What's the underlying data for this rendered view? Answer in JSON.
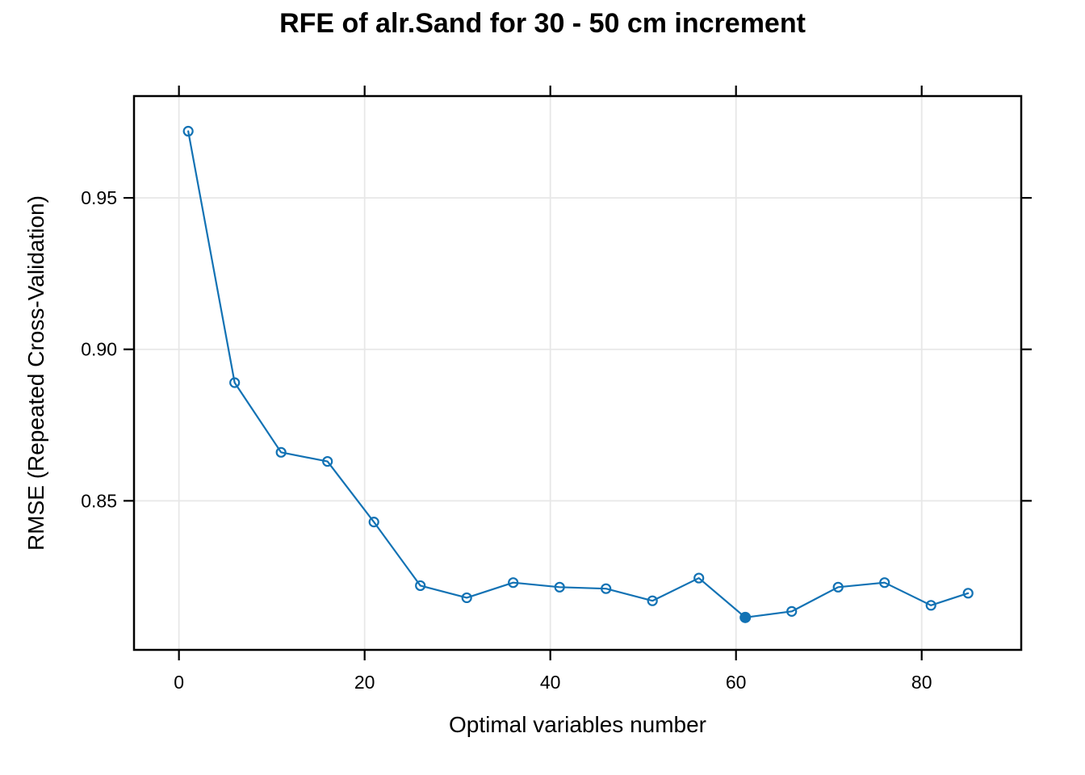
{
  "chart_data": {
    "type": "line",
    "title": "RFE of alr.Sand for 30 - 50 cm increment",
    "xlabel": "Optimal variables number",
    "ylabel": "RMSE (Repeated Cross-Validation)",
    "x": [
      1,
      6,
      11,
      16,
      21,
      26,
      31,
      36,
      41,
      46,
      51,
      56,
      61,
      66,
      71,
      76,
      81,
      85
    ],
    "rmse": [
      0.972,
      0.889,
      0.866,
      0.863,
      0.843,
      0.822,
      0.818,
      0.823,
      0.8215,
      0.821,
      0.817,
      0.8245,
      0.8115,
      0.8135,
      0.8215,
      0.823,
      0.8155,
      0.8195
    ],
    "selected_index": 12,
    "selected_x": 61,
    "selected_rmse": 0.8115,
    "x_ticks": {
      "values": [
        0,
        20,
        40,
        60,
        80
      ],
      "labels": [
        "0",
        "20",
        "40",
        "60",
        "80"
      ]
    },
    "y_ticks": {
      "values": [
        0.85,
        0.9,
        0.95
      ],
      "labels": [
        "0.85",
        "0.90",
        "0.95"
      ]
    },
    "xlim": [
      -4.84,
      90.72
    ],
    "ylim": [
      0.8008,
      0.9836
    ],
    "grid": true,
    "legend": "none",
    "colors": {
      "series": "#1272b4",
      "grid": "#e7e7e7",
      "axis": "#000000",
      "text": "#000000",
      "background": "#ffffff"
    },
    "style": {
      "line_width": 2.2,
      "open_marker_radius": 5.5,
      "open_marker_stroke": 2.2,
      "filled_marker_radius": 7,
      "border_width": 2.5,
      "tick_length": 13,
      "tick_width": 2.2,
      "grid_width": 1.8
    }
  }
}
